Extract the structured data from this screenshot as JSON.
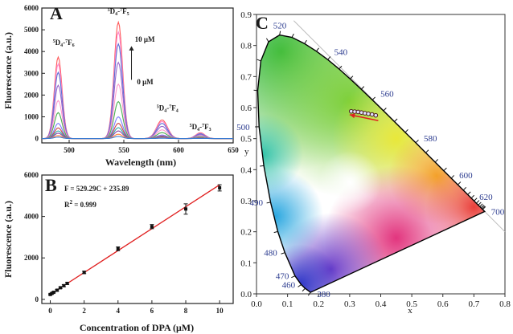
{
  "chart_data": [
    {
      "type": "line",
      "panel": "A",
      "xlabel": "Wavelength (nm)",
      "ylabel": "Fluorescence (a.u.)",
      "xlim": [
        475,
        650
      ],
      "ylim": [
        -200,
        6000
      ],
      "xticks": [
        500,
        550,
        600,
        650
      ],
      "yticks": [
        0,
        1000,
        2000,
        3000,
        4000,
        5000,
        6000
      ],
      "peaks": [
        {
          "center": 490,
          "width": 5,
          "scale": 0.7
        },
        {
          "center": 545,
          "width": 5.5,
          "scale": 1.0
        },
        {
          "center": 585,
          "width": 7,
          "scale": 0.16
        },
        {
          "center": 620,
          "width": 6,
          "scale": 0.05
        }
      ],
      "series": [
        {
          "peak": 5350,
          "color": "#ff5a5a"
        },
        {
          "peak": 4900,
          "color": "#ff88cc"
        },
        {
          "peak": 4350,
          "color": "#5a6fd6"
        },
        {
          "peak": 3500,
          "color": "#9a66cc"
        },
        {
          "peak": 2500,
          "color": "#ff99cc"
        },
        {
          "peak": 1700,
          "color": "#4caf50"
        },
        {
          "peak": 1000,
          "color": "#7b7bff"
        },
        {
          "peak": 700,
          "color": "#cc4444"
        },
        {
          "peak": 500,
          "color": "#33aaaa"
        },
        {
          "peak": 350,
          "color": "#8844aa"
        },
        {
          "peak": 200,
          "color": "#ff8844"
        },
        {
          "peak": 100,
          "color": "#3b7bd1"
        }
      ],
      "annotations": {
        "top_conc": "10 μM",
        "bottom_conc": "0 μM",
        "peak_labels": [
          {
            "pre": "5",
            "main": "D",
            "sub": "4",
            "mid": "-",
            "pre2": "7",
            "main2": "F",
            "sub2": "6",
            "x": 485,
            "y": 4300
          },
          {
            "pre": "5",
            "main": "D",
            "sub": "4",
            "mid": "-",
            "pre2": "7",
            "main2": "F",
            "sub2": "5",
            "x": 535,
            "y": 5750
          },
          {
            "pre": "5",
            "main": "D",
            "sub": "4",
            "mid": "-",
            "pre2": "7",
            "main2": "F",
            "sub2": "4",
            "x": 580,
            "y": 1300
          },
          {
            "pre": "5",
            "main": "D",
            "sub": "4",
            "mid": "-",
            "pre2": "7",
            "main2": "F",
            "sub2": "3",
            "x": 610,
            "y": 420
          }
        ]
      }
    },
    {
      "type": "scatter",
      "panel": "B",
      "xlabel": "Concentration of DPA (μM)",
      "ylabel": "Fluorescence (a.u.)",
      "xlim": [
        -0.5,
        10.8
      ],
      "ylim": [
        -200,
        6000
      ],
      "xticks": [
        0,
        2,
        4,
        6,
        8,
        10
      ],
      "yticks": [
        0,
        2000,
        4000,
        6000
      ],
      "equation": "F = 529.29C + 235.89",
      "r2_prefix": "R",
      "r2_sup": "2",
      "r2_value": " = 0.999",
      "fit": {
        "slope": 529.29,
        "intercept": 235.89
      },
      "points": [
        {
          "x": 0,
          "y": 236,
          "err": 30
        },
        {
          "x": 0.1,
          "y": 290,
          "err": 30
        },
        {
          "x": 0.2,
          "y": 340,
          "err": 30
        },
        {
          "x": 0.4,
          "y": 440,
          "err": 40
        },
        {
          "x": 0.6,
          "y": 560,
          "err": 40
        },
        {
          "x": 0.8,
          "y": 660,
          "err": 50
        },
        {
          "x": 1.0,
          "y": 770,
          "err": 50
        },
        {
          "x": 2.0,
          "y": 1300,
          "err": 60
        },
        {
          "x": 4.0,
          "y": 2440,
          "err": 90
        },
        {
          "x": 6.0,
          "y": 3510,
          "err": 100
        },
        {
          "x": 8.0,
          "y": 4360,
          "err": 250
        },
        {
          "x": 10.0,
          "y": 5380,
          "err": 150
        }
      ]
    },
    {
      "type": "scatter",
      "panel": "C",
      "xlabel": "x",
      "ylabel": "y",
      "xlim": [
        0,
        0.8
      ],
      "ylim": [
        0,
        0.9
      ],
      "xticks": [
        0.0,
        0.1,
        0.2,
        0.3,
        0.4,
        0.5,
        0.6,
        0.7,
        0.8
      ],
      "yticks": [
        0.0,
        0.1,
        0.2,
        0.3,
        0.4,
        0.5,
        0.6,
        0.7,
        0.8,
        0.9
      ],
      "xtick_labels": [
        "0.0",
        "0.1",
        "0.2",
        "0.3",
        "0.4",
        "0.5",
        "0.6",
        "0.7",
        "0.8"
      ],
      "ytick_labels": [
        "0.0",
        "0.1",
        "0.2",
        "0.3",
        "0.4",
        "0.5",
        "0.6",
        "0.7",
        "0.8",
        "0.9"
      ],
      "locus": [
        [
          0.1741,
          0.005
        ],
        [
          0.1566,
          0.0177
        ],
        [
          0.144,
          0.0297
        ],
        [
          0.1241,
          0.0578
        ],
        [
          0.0913,
          0.1327
        ],
        [
          0.0687,
          0.2007
        ],
        [
          0.0454,
          0.295
        ],
        [
          0.0235,
          0.4127
        ],
        [
          0.0082,
          0.5384
        ],
        [
          0.0039,
          0.6548
        ],
        [
          0.0139,
          0.7502
        ],
        [
          0.0389,
          0.812
        ],
        [
          0.0743,
          0.8338
        ],
        [
          0.1142,
          0.8262
        ],
        [
          0.1547,
          0.8059
        ],
        [
          0.1929,
          0.7816
        ],
        [
          0.2296,
          0.7543
        ],
        [
          0.2658,
          0.7243
        ],
        [
          0.3016,
          0.6923
        ],
        [
          0.3373,
          0.6589
        ],
        [
          0.3731,
          0.6245
        ],
        [
          0.4087,
          0.5896
        ],
        [
          0.4441,
          0.5547
        ],
        [
          0.4788,
          0.5202
        ],
        [
          0.5125,
          0.4866
        ],
        [
          0.5448,
          0.4544
        ],
        [
          0.5752,
          0.4242
        ],
        [
          0.6029,
          0.3965
        ],
        [
          0.627,
          0.3725
        ],
        [
          0.6482,
          0.3514
        ],
        [
          0.6658,
          0.334
        ],
        [
          0.6801,
          0.3197
        ],
        [
          0.6915,
          0.3083
        ],
        [
          0.7006,
          0.2993
        ],
        [
          0.7079,
          0.292
        ],
        [
          0.714,
          0.2859
        ],
        [
          0.719,
          0.2809
        ],
        [
          0.723,
          0.277
        ],
        [
          0.726,
          0.274
        ],
        [
          0.7283,
          0.2717
        ],
        [
          0.7347,
          0.2653
        ]
      ],
      "wavelength_labels": [
        {
          "label": "380",
          "x": 0.1741,
          "y": 0.005,
          "dx": 8,
          "dy": 6
        },
        {
          "label": "460",
          "x": 0.144,
          "y": 0.0297,
          "dx": -24,
          "dy": 4
        },
        {
          "label": "470",
          "x": 0.1241,
          "y": 0.0578,
          "dx": -24,
          "dy": 4
        },
        {
          "label": "480",
          "x": 0.0913,
          "y": 0.1327,
          "dx": -26,
          "dy": 4
        },
        {
          "label": "490",
          "x": 0.0454,
          "y": 0.295,
          "dx": -26,
          "dy": 4
        },
        {
          "label": "500",
          "x": 0.0082,
          "y": 0.5384,
          "dx": -28,
          "dy": 4
        },
        {
          "label": "520",
          "x": 0.0743,
          "y": 0.8338,
          "dx": -8,
          "dy": -8
        },
        {
          "label": "540",
          "x": 0.2296,
          "y": 0.7543,
          "dx": 8,
          "dy": -6
        },
        {
          "label": "560",
          "x": 0.3731,
          "y": 0.6245,
          "dx": 10,
          "dy": -4
        },
        {
          "label": "580",
          "x": 0.5125,
          "y": 0.4866,
          "dx": 10,
          "dy": -2
        },
        {
          "label": "600",
          "x": 0.627,
          "y": 0.3725,
          "dx": 10,
          "dy": 0
        },
        {
          "label": "620",
          "x": 0.6915,
          "y": 0.3083,
          "dx": 10,
          "dy": 2
        },
        {
          "label": "700",
          "x": 0.7347,
          "y": 0.2653,
          "dx": 8,
          "dy": 4
        }
      ],
      "points": [
        [
          0.305,
          0.588
        ],
        [
          0.316,
          0.587
        ],
        [
          0.327,
          0.586
        ],
        [
          0.338,
          0.584
        ],
        [
          0.349,
          0.582
        ],
        [
          0.36,
          0.58
        ],
        [
          0.372,
          0.578
        ],
        [
          0.384,
          0.575
        ]
      ],
      "arrow": {
        "from": [
          0.392,
          0.558
        ],
        "to": [
          0.3,
          0.577
        ],
        "color": "#e02020"
      }
    }
  ],
  "panels": {
    "a": {
      "letter": "A"
    },
    "b": {
      "letter": "B"
    },
    "c": {
      "letter": "C"
    }
  }
}
